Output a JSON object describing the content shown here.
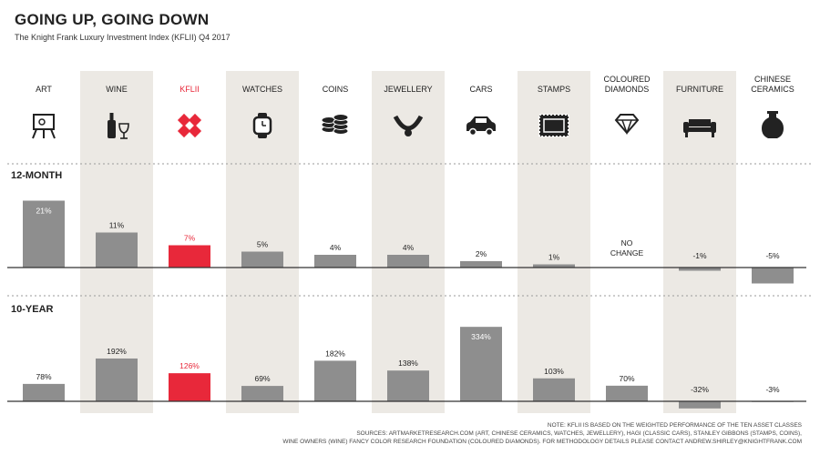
{
  "header": {
    "title": "GOING UP, GOING DOWN",
    "subtitle": "The Knight Frank Luxury Investment Index (KFLII) Q4 2017"
  },
  "colors": {
    "bar": "#8e8e8e",
    "highlight": "#e8283a",
    "shade": "#ece9e4",
    "ink": "#222222"
  },
  "chart_data": {
    "type": "bar",
    "categories": [
      "ART",
      "WINE",
      "KFLII",
      "WATCHES",
      "COINS",
      "JEWELLERY",
      "CARS",
      "STAMPS",
      "COLOURED DIAMONDS",
      "FURNITURE",
      "CHINESE CERAMICS"
    ],
    "icons": [
      "easel-icon",
      "wine-icon",
      "kflii-logo-icon",
      "watch-icon",
      "coins-icon",
      "necklace-icon",
      "car-icon",
      "stamp-icon",
      "diamond-icon",
      "sofa-icon",
      "vase-icon"
    ],
    "highlight_index": 2,
    "series": [
      {
        "name": "12-MONTH",
        "values": [
          21,
          11,
          7,
          5,
          4,
          4,
          2,
          1,
          0,
          -1,
          -5
        ],
        "labels": [
          "21%",
          "11%",
          "7%",
          "5%",
          "4%",
          "4%",
          "2%",
          "1%",
          "NO CHANGE",
          "-1%",
          "-5%"
        ]
      },
      {
        "name": "10-YEAR",
        "values": [
          78,
          192,
          126,
          69,
          182,
          138,
          334,
          103,
          70,
          -32,
          -3
        ],
        "labels": [
          "78%",
          "192%",
          "126%",
          "69%",
          "182%",
          "138%",
          "334%",
          "103%",
          "70%",
          "-32%",
          "-3%"
        ]
      }
    ]
  },
  "footnotes": [
    "NOTE: KFLII IS BASED ON THE WEIGHTED PERFORMANCE OF THE TEN ASSET CLASSES",
    "SOURCES: ARTMARKETRESEARCH.COM (ART, CHINESE CERAMICS, WATCHES, JEWELLERY), HAGI (CLASSIC CARS), STANLEY GIBBONS (STAMPS, COINS),",
    "WINE OWNERS (WINE) FANCY COLOR RESEARCH FOUNDATION (COLOURED DIAMONDS). FOR METHODOLOGY DETAILS PLEASE CONTACT ANDREW.SHIRLEY@KNIGHTFRANK.COM"
  ]
}
